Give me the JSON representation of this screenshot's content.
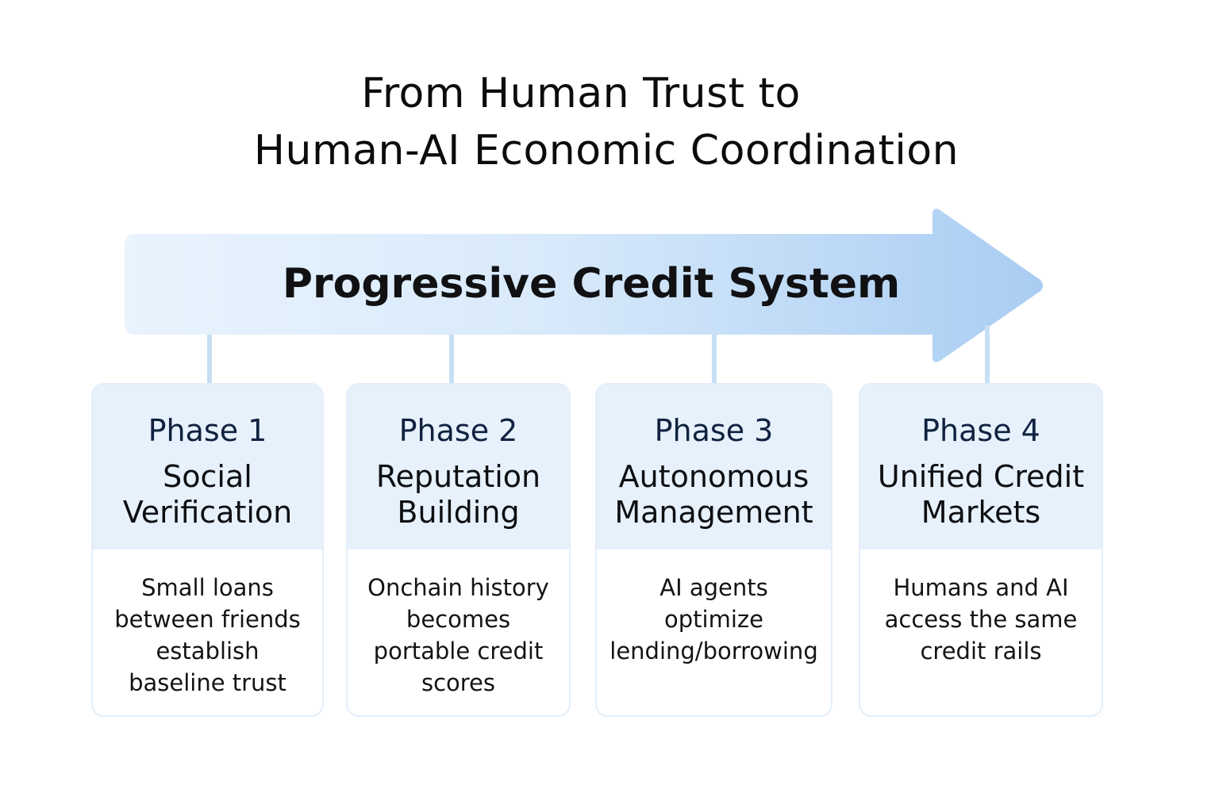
{
  "title_lines": [
    "From Human Trust to",
    "Human-AI Economic Coordination"
  ],
  "arrow_label": "Progressive Credit System",
  "colors": {
    "arrow_start": "#e9f3fd",
    "arrow_end": "#a9cdf2",
    "connector": "#c6dff4",
    "card_header_bg": "#e6f1fc",
    "card_border": "#e4eef9",
    "phase_label_color": "#10223f"
  },
  "phases": [
    {
      "label": "Phase 1",
      "title": "Social\nVerification",
      "description": "Small loans\nbetween friends\nestablish\nbaseline trust"
    },
    {
      "label": "Phase 2",
      "title": "Reputation\nBuilding",
      "description": "Onchain history\nbecomes\nportable credit\nscores"
    },
    {
      "label": "Phase 3",
      "title": "Autonomous\nManagement",
      "description": "AI agents\noptimize\nlending/borrowing"
    },
    {
      "label": "Phase 4",
      "title": "Unified Credit\nMarkets",
      "description": "Humans and AI\naccess the same\ncredit rails"
    }
  ]
}
